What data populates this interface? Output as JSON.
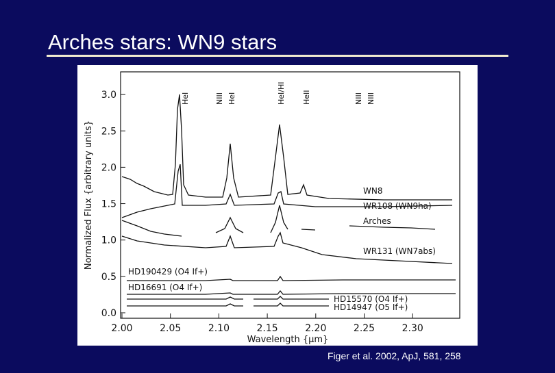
{
  "slide": {
    "title": "Arches stars: WN9 stars",
    "citation": "Figer et al. 2002, ApJ, 581, 258"
  },
  "figure": {
    "x_axis_label": "Wavelength {μm}",
    "y_axis_label": "Normalized Flux {arbitrary units}",
    "x_tick_labels": [
      "2.00",
      "2.05",
      "2.10",
      "2.15",
      "2.20",
      "2.25",
      "2.30"
    ],
    "y_tick_labels": [
      "0.0",
      "0.5",
      "1.0",
      "1.5",
      "2.0",
      "2.5",
      "3.0"
    ],
    "spectra_labels": [
      "WN8",
      "WR108 (WN9ha)",
      "Arches",
      "WR131 (WN7abs)",
      "HD190429 (O4 If+)",
      "HD16691 (O4 If+)",
      "HD15570 (O4 If+)",
      "HD14947 (O5 If+)"
    ],
    "line_ids": [
      "HeI",
      "NIII",
      "HeI",
      "HeI/HI",
      "HeII",
      "NIII",
      "NIII"
    ]
  }
}
